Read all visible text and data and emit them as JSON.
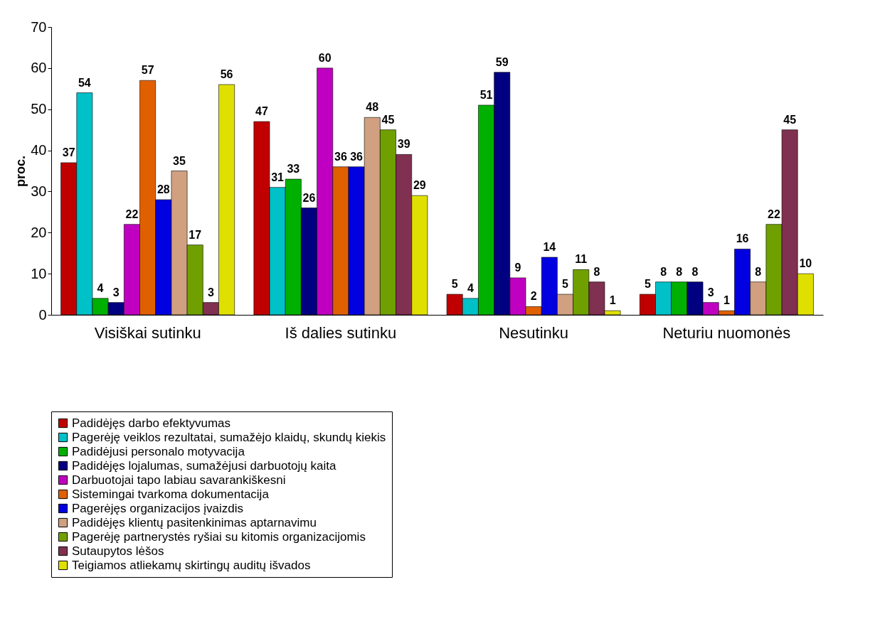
{
  "chart_data": {
    "type": "bar",
    "ylabel": "proc.",
    "categories": [
      "Visiškai sutinku",
      "Iš dalies sutinku",
      "Nesutinku",
      "Neturiu nuomonės"
    ],
    "series": [
      {
        "name": "Padidėjęs darbo efektyvumas",
        "color": "#c00000",
        "values": [
          37,
          47,
          5,
          5
        ]
      },
      {
        "name": "Pagerėję veiklos rezultatai, sumažėjo klaidų, skundų kiekis",
        "color": "#00c0c8",
        "values": [
          54,
          31,
          4,
          8
        ]
      },
      {
        "name": "Padidėjusi personalo motyvacija",
        "color": "#00b000",
        "values": [
          4,
          33,
          51,
          8
        ]
      },
      {
        "name": "Padidėjęs lojalumas, sumažėjusi darbuotojų kaita",
        "color": "#000080",
        "values": [
          3,
          26,
          59,
          8
        ]
      },
      {
        "name": "Darbuotojai tapo labiau savarankiškesni",
        "color": "#c000c0",
        "values": [
          22,
          60,
          9,
          3
        ]
      },
      {
        "name": "Sistemingai tvarkoma dokumentacija",
        "color": "#e06000",
        "values": [
          57,
          36,
          2,
          1
        ]
      },
      {
        "name": "Pagerėjęs organizacijos įvaizdis",
        "color": "#0000e0",
        "values": [
          28,
          36,
          14,
          16
        ]
      },
      {
        "name": "Padidėjęs klientų pasitenkinimas aptarnavimu",
        "color": "#d0a080",
        "values": [
          35,
          48,
          5,
          8
        ]
      },
      {
        "name": "Pagerėję partnerystės ryšiai su kitomis organizacijomis",
        "color": "#70a000",
        "values": [
          17,
          45,
          11,
          22
        ]
      },
      {
        "name": "Sutaupytos lėšos",
        "color": "#803050",
        "values": [
          3,
          39,
          8,
          45
        ]
      },
      {
        "name": "Teigiamos atliekamų skirtingų auditų išvados",
        "color": "#e0e000",
        "values": [
          56,
          29,
          1,
          10
        ]
      }
    ],
    "ylim": [
      0,
      70
    ],
    "yticks": [
      0,
      10,
      20,
      30,
      40,
      50,
      60,
      70
    ],
    "data_labels": true,
    "legend": "bottom",
    "grid": false
  }
}
